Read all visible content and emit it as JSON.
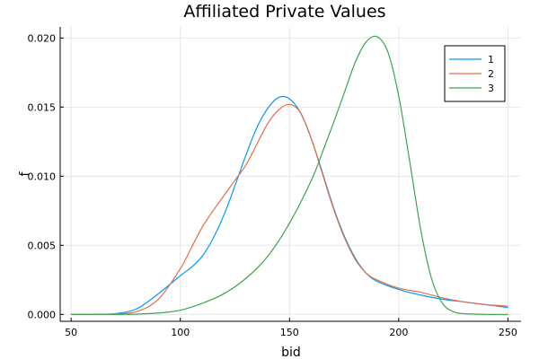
{
  "chart_data": {
    "type": "line",
    "title": "Affiliated Private Values",
    "xlabel": "bid",
    "ylabel": "f",
    "xlim": [
      45,
      256
    ],
    "ylim": [
      -0.0005,
      0.0208
    ],
    "xticks": [
      50,
      100,
      150,
      200,
      250
    ],
    "yticks": [
      0.0,
      0.005,
      0.01,
      0.015,
      0.02
    ],
    "xtick_labels": [
      "50",
      "100",
      "150",
      "200",
      "250"
    ],
    "ytick_labels": [
      "0.000",
      "0.005",
      "0.010",
      "0.015",
      "0.020"
    ],
    "grid": true,
    "legend_position": "top-right",
    "series": [
      {
        "name": "1",
        "color": "#009AFA",
        "x": [
          50,
          60,
          70,
          80,
          90,
          100,
          105,
          110,
          115,
          120,
          125,
          130,
          135,
          140,
          145,
          150,
          155,
          160,
          165,
          170,
          175,
          180,
          185,
          190,
          200,
          210,
          220,
          230,
          240,
          250
        ],
        "y": [
          0.0,
          0.0,
          5e-05,
          0.0004,
          0.0015,
          0.0028,
          0.0034,
          0.0042,
          0.0055,
          0.0072,
          0.0093,
          0.0115,
          0.0135,
          0.0149,
          0.0157,
          0.0156,
          0.0146,
          0.0127,
          0.0103,
          0.0078,
          0.0057,
          0.0041,
          0.003,
          0.0024,
          0.0018,
          0.0014,
          0.0011,
          0.0009,
          0.0007,
          0.0005
        ]
      },
      {
        "name": "2",
        "color": "#E26F46",
        "x": [
          50,
          60,
          70,
          80,
          90,
          100,
          105,
          110,
          115,
          120,
          125,
          130,
          135,
          140,
          145,
          150,
          155,
          160,
          165,
          170,
          175,
          180,
          185,
          190,
          200,
          210,
          220,
          230,
          240,
          250
        ],
        "y": [
          0.0,
          0.0,
          3e-05,
          0.0002,
          0.0011,
          0.0033,
          0.0048,
          0.0063,
          0.0075,
          0.0086,
          0.0097,
          0.0108,
          0.0123,
          0.0138,
          0.0148,
          0.0152,
          0.0146,
          0.0127,
          0.0102,
          0.0077,
          0.0056,
          0.004,
          0.003,
          0.0025,
          0.0019,
          0.0016,
          0.0012,
          0.0009,
          0.0007,
          0.0006
        ]
      },
      {
        "name": "3",
        "color": "#3DA44D",
        "x": [
          50,
          60,
          70,
          80,
          90,
          100,
          110,
          120,
          130,
          140,
          150,
          160,
          165,
          170,
          175,
          180,
          185,
          190,
          195,
          200,
          205,
          210,
          215,
          220,
          225,
          230,
          240,
          250
        ],
        "y": [
          0.0,
          0.0,
          0.0,
          2e-05,
          0.0001,
          0.0003,
          0.0008,
          0.0015,
          0.0026,
          0.0042,
          0.0066,
          0.0097,
          0.0117,
          0.0138,
          0.016,
          0.0182,
          0.0197,
          0.0201,
          0.019,
          0.0158,
          0.0111,
          0.0062,
          0.0026,
          0.0008,
          0.0002,
          5e-05,
          0.0,
          0.0
        ]
      }
    ]
  }
}
